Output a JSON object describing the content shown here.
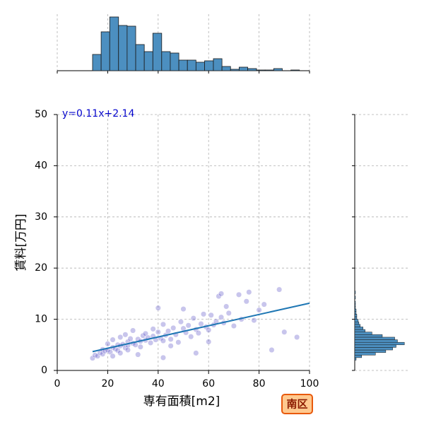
{
  "chart_data": {
    "type": "jointplot",
    "x_label": "専有面積[m2]",
    "y_label": "賃料[万円]",
    "annotation": "y=0.11x+2.14",
    "badge": "南区",
    "xlim": [
      0,
      100
    ],
    "xticks": [
      0,
      20,
      40,
      60,
      80,
      100
    ],
    "ylim": [
      0,
      50
    ],
    "yticks": [
      0,
      10,
      20,
      30,
      40,
      50
    ],
    "grid": true,
    "color": "#4a3fbf",
    "line_color": "#1f77b4",
    "hist_color": "#4c8fc0",
    "series": [
      {
        "name": "scatter",
        "type": "scatter",
        "x": [
          14,
          15,
          16,
          17,
          18,
          18,
          19,
          20,
          20,
          21,
          22,
          22,
          23,
          24,
          24,
          25,
          25,
          26,
          27,
          27,
          28,
          28,
          29,
          30,
          30,
          31,
          32,
          33,
          33,
          34,
          35,
          35,
          36,
          37,
          38,
          39,
          40,
          40,
          41,
          42,
          42,
          43,
          44,
          45,
          46,
          47,
          48,
          49,
          50,
          51,
          52,
          53,
          54,
          55,
          56,
          57,
          58,
          59,
          60,
          61,
          62,
          63,
          64,
          65,
          65,
          66,
          67,
          68,
          70,
          72,
          73,
          75,
          76,
          78,
          80,
          82,
          85,
          88,
          90,
          95,
          22,
          25,
          28,
          32,
          38,
          42,
          45,
          50,
          55,
          60
        ],
        "values": [
          2.4,
          3.0,
          2.8,
          3.5,
          3.2,
          4.1,
          3.8,
          4.0,
          5.2,
          3.6,
          4.5,
          6.0,
          4.2,
          5.0,
          3.9,
          4.8,
          6.5,
          5.1,
          4.4,
          7.0,
          5.6,
          4.9,
          6.2,
          5.3,
          7.8,
          5.0,
          6.1,
          5.7,
          4.6,
          6.8,
          5.9,
          7.2,
          6.4,
          5.4,
          8.1,
          6.0,
          12.2,
          7.5,
          6.3,
          5.8,
          9.0,
          6.9,
          7.7,
          6.1,
          8.3,
          7.0,
          5.5,
          9.5,
          12.0,
          7.4,
          8.8,
          6.6,
          10.2,
          8.0,
          7.3,
          9.1,
          11.0,
          8.5,
          7.9,
          10.8,
          8.9,
          9.6,
          14.5,
          15.0,
          10.4,
          9.3,
          12.5,
          11.2,
          8.7,
          14.8,
          10.0,
          13.5,
          15.3,
          9.8,
          11.8,
          12.9,
          4.0,
          15.8,
          7.5,
          6.5,
          2.8,
          3.4,
          4.0,
          3.1,
          6.7,
          2.5,
          4.8,
          8.2,
          3.4,
          5.6
        ]
      },
      {
        "name": "regression",
        "type": "line",
        "x": [
          14,
          100
        ],
        "values": [
          3.68,
          13.14
        ]
      }
    ],
    "x_hist": {
      "bins": [
        14,
        17.4,
        20.8,
        24.3,
        27.7,
        31.1,
        34.5,
        37.9,
        41.4,
        44.8,
        48.2,
        51.6,
        55.0,
        58.4,
        61.9,
        65.3,
        68.7,
        72.1,
        75.5,
        79.0,
        82.4,
        85.8,
        89.2,
        92.6,
        96.0,
        99.5
      ],
      "counts": [
        23,
        55,
        76,
        64,
        63,
        37,
        27,
        53,
        27,
        25,
        15,
        15,
        12,
        14,
        17,
        6,
        2,
        5,
        3,
        1,
        1,
        3,
        0,
        1,
        0
      ],
      "ylim": [
        0,
        80
      ]
    },
    "y_hist": {
      "bins": [
        2,
        2.5,
        3,
        3.5,
        4,
        4.5,
        5,
        5.5,
        6,
        6.5,
        7,
        7.5,
        8,
        8.5,
        9,
        9.5,
        10,
        10.5,
        11,
        11.5,
        12,
        12.5,
        13,
        13.5,
        14,
        14.5,
        15,
        15.5
      ],
      "counts": [
        2,
        10,
        30,
        45,
        55,
        60,
        72,
        62,
        58,
        40,
        25,
        15,
        12,
        8,
        6,
        5,
        3,
        3,
        2,
        2,
        1,
        1,
        1,
        0,
        1,
        0,
        1
      ],
      "xlim": [
        0,
        80
      ]
    }
  }
}
